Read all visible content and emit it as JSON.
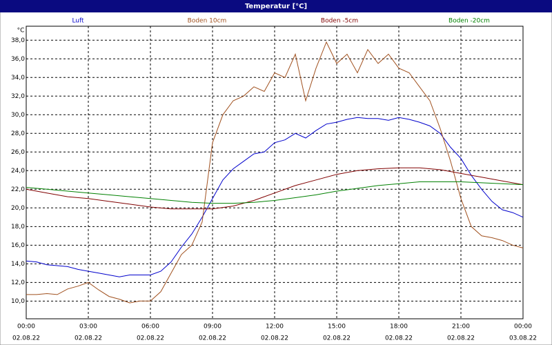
{
  "chart_data": {
    "type": "line",
    "title": "Temperatur [°C]",
    "y_unit": "°C",
    "xlim": [
      0,
      24
    ],
    "ylim": [
      8.1,
      39.5
    ],
    "grid": true,
    "xticks": [
      {
        "value": 0,
        "label": "00:00",
        "date": "02.08.22"
      },
      {
        "value": 3,
        "label": "03:00",
        "date": "02.08.22"
      },
      {
        "value": 6,
        "label": "06:00",
        "date": "02.08.22"
      },
      {
        "value": 9,
        "label": "09:00",
        "date": "02.08.22"
      },
      {
        "value": 12,
        "label": "12:00",
        "date": "02.08.22"
      },
      {
        "value": 15,
        "label": "15:00",
        "date": "02.08.22"
      },
      {
        "value": 18,
        "label": "18:00",
        "date": "02.08.22"
      },
      {
        "value": 21,
        "label": "21:00",
        "date": "02.08.22"
      },
      {
        "value": 24,
        "label": "00:00",
        "date": "03.08.22"
      }
    ],
    "yticks": [
      {
        "value": 10,
        "label": "10,0"
      },
      {
        "value": 12,
        "label": "12,0"
      },
      {
        "value": 14,
        "label": "14,0"
      },
      {
        "value": 16,
        "label": "16,0"
      },
      {
        "value": 18,
        "label": "18,0"
      },
      {
        "value": 20,
        "label": "20,0"
      },
      {
        "value": 22,
        "label": "22,0"
      },
      {
        "value": 24,
        "label": "24,0"
      },
      {
        "value": 26,
        "label": "26,0"
      },
      {
        "value": 28,
        "label": "28,0"
      },
      {
        "value": 30,
        "label": "30,0"
      },
      {
        "value": 32,
        "label": "32,0"
      },
      {
        "value": 34,
        "label": "34,0"
      },
      {
        "value": 36,
        "label": "36,0"
      },
      {
        "value": 38,
        "label": "38,0"
      }
    ],
    "series": [
      {
        "name": "Luft",
        "color": "#0000cc",
        "x": [
          0,
          0.5,
          1,
          1.5,
          2,
          2.5,
          3,
          3.5,
          4,
          4.5,
          5,
          5.5,
          6,
          6.5,
          7,
          7.5,
          8,
          8.5,
          9,
          9.5,
          10,
          10.5,
          11,
          11.5,
          12,
          12.5,
          13,
          13.5,
          14,
          14.5,
          15,
          15.5,
          16,
          16.5,
          17,
          17.5,
          18,
          18.5,
          19,
          19.5,
          20,
          20.5,
          21,
          21.5,
          22,
          22.5,
          23,
          23.5,
          24
        ],
        "values": [
          14.3,
          14.2,
          13.9,
          13.8,
          13.7,
          13.4,
          13.2,
          13.0,
          12.8,
          12.6,
          12.8,
          12.8,
          12.8,
          13.2,
          14.2,
          15.8,
          17.2,
          19.0,
          21.0,
          23.0,
          24.2,
          25.0,
          25.8,
          26.0,
          27.0,
          27.3,
          28.0,
          27.5,
          28.3,
          29.0,
          29.2,
          29.5,
          29.7,
          29.6,
          29.6,
          29.4,
          29.7,
          29.5,
          29.2,
          28.8,
          28.0,
          26.5,
          25.3,
          23.5,
          22.0,
          20.7,
          19.8,
          19.5,
          19.0
        ]
      },
      {
        "name": "Boden 10cm",
        "color": "#a0501e",
        "x": [
          0,
          0.5,
          1,
          1.5,
          2,
          2.5,
          3,
          3.5,
          4,
          4.5,
          5,
          5.5,
          6,
          6.5,
          7,
          7.5,
          8,
          8.5,
          9,
          9.5,
          10,
          10.5,
          11,
          11.5,
          12,
          12.5,
          13,
          13.5,
          14,
          14.5,
          15,
          15.5,
          16,
          16.5,
          17,
          17.5,
          18,
          18.5,
          19,
          19.5,
          20,
          20.5,
          21,
          21.5,
          22,
          22.5,
          23,
          23.5,
          24
        ],
        "values": [
          10.7,
          10.7,
          10.8,
          10.7,
          11.3,
          11.6,
          12.0,
          11.2,
          10.5,
          10.2,
          9.8,
          10.0,
          10.0,
          11.0,
          13.0,
          15.0,
          16.0,
          18.5,
          27.0,
          30.0,
          31.5,
          32.0,
          33.0,
          32.5,
          34.5,
          34.0,
          36.5,
          31.5,
          35.0,
          37.8,
          35.5,
          36.5,
          34.5,
          37.0,
          35.5,
          36.5,
          35.0,
          34.5,
          33.0,
          31.5,
          28.5,
          25.0,
          21.0,
          18.0,
          17.0,
          16.8,
          16.5,
          16.0,
          15.7
        ]
      },
      {
        "name": "Boden -5cm",
        "color": "#800000",
        "x": [
          0,
          1,
          2,
          3,
          4,
          5,
          6,
          7,
          8,
          9,
          10,
          11,
          12,
          13,
          14,
          15,
          16,
          17,
          18,
          19,
          20,
          21,
          22,
          23,
          24
        ],
        "values": [
          22.0,
          21.6,
          21.2,
          21.0,
          20.7,
          20.4,
          20.1,
          19.9,
          19.9,
          19.9,
          20.2,
          20.8,
          21.6,
          22.4,
          23.0,
          23.6,
          24.0,
          24.2,
          24.3,
          24.3,
          24.1,
          23.7,
          23.3,
          22.9,
          22.5
        ]
      },
      {
        "name": "Boden -20cm",
        "color": "#008000",
        "x": [
          0,
          1,
          2,
          3,
          4,
          5,
          6,
          7,
          8,
          9,
          10,
          11,
          12,
          13,
          14,
          15,
          16,
          17,
          18,
          19,
          20,
          21,
          22,
          23,
          24
        ],
        "values": [
          22.2,
          22.0,
          21.8,
          21.6,
          21.4,
          21.2,
          21.0,
          20.8,
          20.6,
          20.5,
          20.5,
          20.6,
          20.8,
          21.1,
          21.4,
          21.8,
          22.1,
          22.4,
          22.6,
          22.8,
          22.8,
          22.8,
          22.7,
          22.6,
          22.5
        ]
      }
    ]
  }
}
